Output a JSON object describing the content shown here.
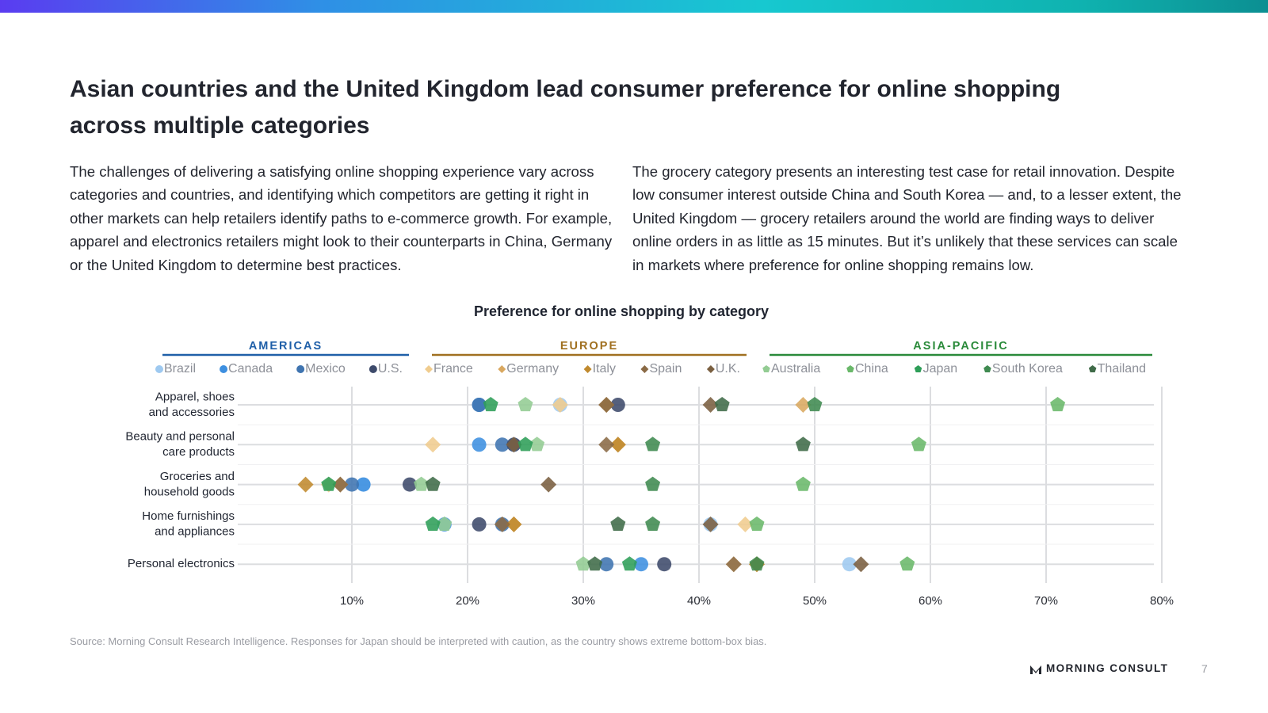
{
  "header": {
    "title": "Asian countries and the United Kingdom lead consumer preference for online shopping across multiple categories"
  },
  "body": {
    "paragraphs": [
      "The challenges of delivering a satisfying online shopping experience vary across categories and countries, and identifying which competitors are getting it right in other markets can help retailers identify paths to e-commerce growth. For example, apparel and electronics retailers might look to their counterparts in China, Germany or the United Kingdom to determine best practices.",
      "The grocery category presents an interesting test case for retail innovation. Despite low consumer interest outside China and South Korea — and, to a lesser extent, the United Kingdom — grocery retailers around the world are finding ways to deliver online orders in as little as 15 minutes. But it’s unlikely that these services can scale in markets where preference for online shopping remains low."
    ]
  },
  "chart_data": {
    "type": "dot",
    "title": "Preference for online shopping by category",
    "categories": [
      [
        "Apparel, shoes",
        "and accessories"
      ],
      [
        "Beauty and personal",
        "care products"
      ],
      [
        "Groceries and",
        "household goods"
      ],
      [
        "Home furnishings",
        "and appliances"
      ],
      [
        "Personal electronics"
      ]
    ],
    "xlim": [
      0,
      80
    ],
    "xticks": [
      {
        "value": 10,
        "label": "10%"
      },
      {
        "value": 20,
        "label": "20%"
      },
      {
        "value": 30,
        "label": "30%"
      },
      {
        "value": 40,
        "label": "40%"
      },
      {
        "value": 50,
        "label": "50%"
      },
      {
        "value": 60,
        "label": "60%"
      },
      {
        "value": 70,
        "label": "70%"
      },
      {
        "value": 80,
        "label": "80%"
      }
    ],
    "grid": true,
    "groups": [
      {
        "name": "AMERICAS",
        "color": "#1f5fa8",
        "marker": "circle",
        "series": [
          {
            "name": "Brazil",
            "color": "#9ec9f0",
            "values": [
              28,
              24,
              11,
              41,
              53
            ]
          },
          {
            "name": "Canada",
            "color": "#3d8fe0",
            "values": [
              21,
              21,
              11,
              18,
              35
            ]
          },
          {
            "name": "Mexico",
            "color": "#3f74b0",
            "values": [
              21,
              23,
              10,
              23,
              32
            ]
          },
          {
            "name": "U.S.",
            "color": "#3d4a6b",
            "values": [
              33,
              24,
              15,
              21,
              37
            ]
          }
        ]
      },
      {
        "name": "EUROPE",
        "color": "#a07020",
        "marker": "diamond",
        "series": [
          {
            "name": "France",
            "color": "#f0cc8e",
            "values": [
              28,
              17,
              8,
              44,
              43
            ]
          },
          {
            "name": "Germany",
            "color": "#d9a860",
            "values": [
              49,
              33,
              9,
              24,
              45
            ]
          },
          {
            "name": "Italy",
            "color": "#c08a2e",
            "values": [
              32,
              33,
              6,
              24,
              45
            ]
          },
          {
            "name": "Spain",
            "color": "#8a6a45",
            "values": [
              32,
              32,
              9,
              23,
              43
            ]
          },
          {
            "name": "U.K.",
            "color": "#7a5f40",
            "values": [
              41,
              24,
              27,
              41,
              54
            ]
          }
        ]
      },
      {
        "name": "ASIA-PACIFIC",
        "color": "#2a8a3a",
        "marker": "pentagon",
        "series": [
          {
            "name": "Australia",
            "color": "#93cc93",
            "values": [
              25,
              26,
              16,
              18,
              30
            ]
          },
          {
            "name": "China",
            "color": "#6ab86a",
            "values": [
              71,
              59,
              49,
              45,
              58
            ]
          },
          {
            "name": "Japan",
            "color": "#2e9e58",
            "values": [
              22,
              25,
              8,
              17,
              34
            ]
          },
          {
            "name": "South Korea",
            "color": "#3f8a50",
            "values": [
              50,
              36,
              36,
              36,
              45
            ]
          },
          {
            "name": "Thailand",
            "color": "#3f6b48",
            "values": [
              42,
              49,
              17,
              33,
              31
            ]
          }
        ]
      }
    ]
  },
  "source": "Source: Morning Consult Research Intelligence. Responses for Japan should be interpreted with caution, as the country shows extreme bottom-box bias.",
  "footer": {
    "brand": "MORNING CONSULT",
    "page": 7
  }
}
